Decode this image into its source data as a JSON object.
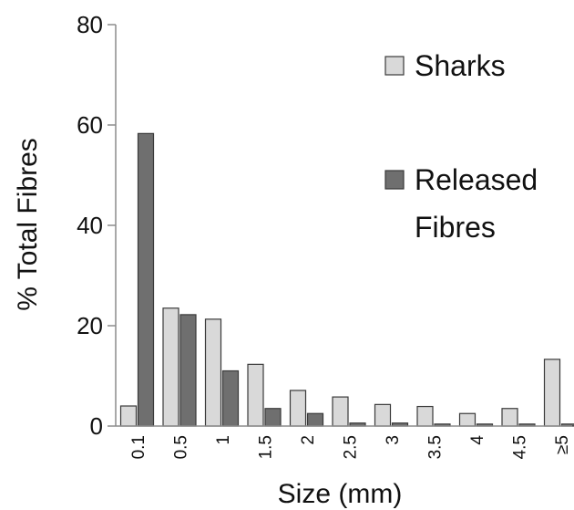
{
  "chart_data": {
    "type": "bar",
    "title": "",
    "xlabel": "Size (mm)",
    "ylabel": "% Total Fibres",
    "ylim": [
      0,
      80
    ],
    "yticks": [
      0,
      20,
      40,
      60,
      80
    ],
    "categories": [
      "0.1",
      "0.5",
      "1",
      "1.5",
      "2",
      "2.5",
      "3",
      "3.5",
      "4",
      "4.5",
      "≥5"
    ],
    "series": [
      {
        "name": "Sharks",
        "color": "#d9d9d9",
        "values": [
          4,
          23.5,
          21.3,
          12.3,
          7.1,
          5.8,
          4.3,
          3.9,
          2.5,
          3.5,
          13.3
        ]
      },
      {
        "name": "Released Fibres",
        "color": "#6f6f6f",
        "values": [
          58.3,
          22.2,
          11,
          3.5,
          2.5,
          0.6,
          0.6,
          0.4,
          0.4,
          0.4,
          0.4
        ]
      }
    ],
    "legend": {
      "position": "top-right",
      "entries": [
        {
          "lines": [
            "Sharks"
          ]
        },
        {
          "lines": [
            "Released",
            "Fibres"
          ]
        }
      ]
    }
  }
}
